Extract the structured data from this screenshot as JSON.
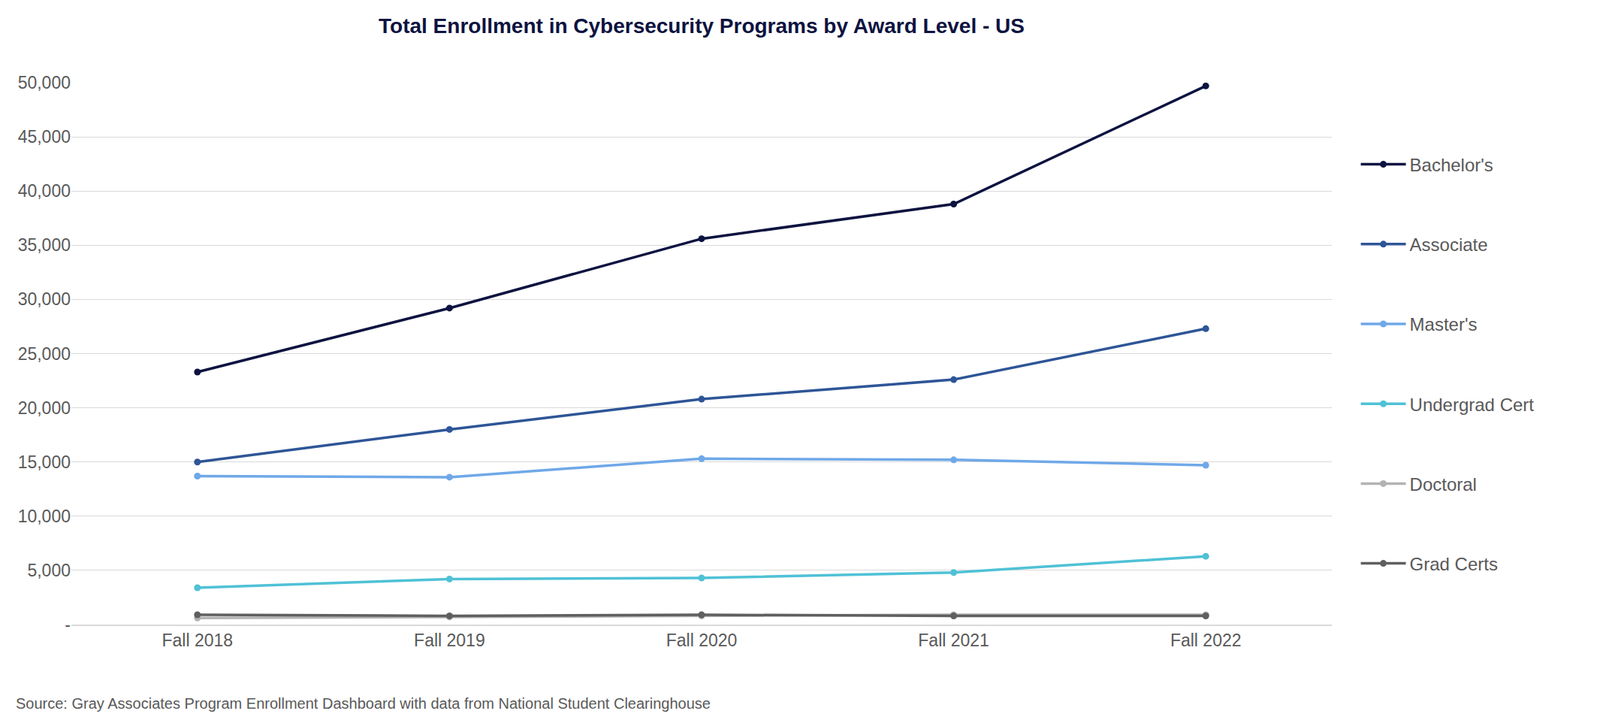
{
  "chart_data": {
    "type": "line",
    "title": "Total Enrollment in Cybersecurity Programs by Award Level - US",
    "source": "Source: Gray Associates Program Enrollment Dashboard with data from National Student Clearinghouse",
    "categories": [
      "Fall 2018",
      "Fall 2019",
      "Fall 2020",
      "Fall 2021",
      "Fall 2022"
    ],
    "series": [
      {
        "name": "Bachelor's",
        "color": "#0d1340",
        "values": [
          23300,
          29200,
          35600,
          38800,
          49700
        ]
      },
      {
        "name": "Associate",
        "color": "#2e5597",
        "values": [
          15000,
          18000,
          20800,
          22600,
          27300
        ]
      },
      {
        "name": "Master's",
        "color": "#6fa8e8",
        "values": [
          13700,
          13600,
          15300,
          15200,
          14700
        ]
      },
      {
        "name": "Undergrad Cert",
        "color": "#4fc1d6",
        "values": [
          3400,
          4200,
          4300,
          4800,
          6300
        ]
      },
      {
        "name": "Doctoral",
        "color": "#b3b3b3",
        "values": [
          600,
          700,
          800,
          900,
          900
        ]
      },
      {
        "name": "Grad Certs",
        "color": "#5f5f5f",
        "values": [
          900,
          800,
          900,
          800,
          800
        ]
      }
    ],
    "ylim": [
      0,
      50000
    ],
    "yticks": [
      {
        "value": 0,
        "label": "-"
      },
      {
        "value": 5000,
        "label": "5,000"
      },
      {
        "value": 10000,
        "label": "10,000"
      },
      {
        "value": 15000,
        "label": "15,000"
      },
      {
        "value": 20000,
        "label": "20,000"
      },
      {
        "value": 25000,
        "label": "25,000"
      },
      {
        "value": 30000,
        "label": "30,000"
      },
      {
        "value": 35000,
        "label": "35,000"
      },
      {
        "value": 40000,
        "label": "40,000"
      },
      {
        "value": 45000,
        "label": "45,000"
      },
      {
        "value": 50000,
        "label": "50,000"
      }
    ],
    "grid": true,
    "legend": "right",
    "marker": "circle"
  }
}
